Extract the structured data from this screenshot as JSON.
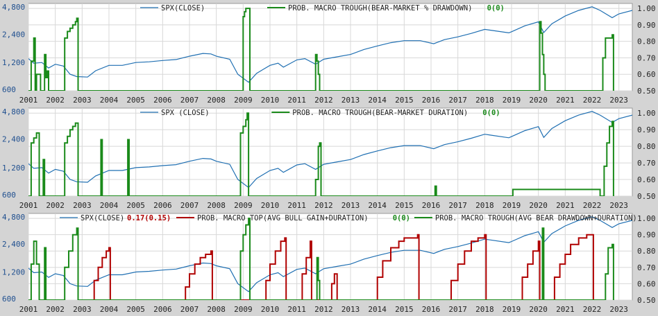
{
  "colors": {
    "spx": "#1f6fb2",
    "trough": "#1a8a1a",
    "top": "#b00000",
    "background": "#ffffff",
    "frame": "#d4d4d4",
    "grid": "#d8d8d8"
  },
  "chart_data": [
    {
      "type": "line",
      "legend": [
        {
          "text": "SPX(CLOSE)",
          "color": "#1f6fb2"
        },
        {
          "text": "PROB. MACRO TROUGH(BEAR-MARKET % DRAWDOWN)",
          "color": "#1a8a1a"
        },
        {
          "text": "0(0)",
          "color": "#1a8a1a",
          "is_value": true
        }
      ],
      "x_ticks": [
        "2001",
        "2002",
        "2003",
        "2004",
        "2005",
        "2006",
        "2007",
        "2008",
        "2009",
        "2010",
        "2011",
        "2012",
        "2013",
        "2014",
        "2015",
        "2016",
        "2017",
        "2018",
        "2019",
        "2020",
        "2021",
        "2022",
        "2023"
      ],
      "xlim": [
        2001.0,
        2023.5
      ],
      "left_axis": {
        "scale": "log",
        "ticks": [
          "4,800",
          "2,400",
          "1,200",
          "600"
        ],
        "tick_values": [
          4800,
          2400,
          1200,
          600
        ],
        "ylim": [
          600,
          5100
        ]
      },
      "right_axis": {
        "ticks": [
          "1.00",
          "0.90",
          "0.80",
          "0.70",
          "0.60",
          "0.50"
        ],
        "tick_values": [
          1.0,
          0.9,
          0.8,
          0.7,
          0.6,
          0.5
        ],
        "ylim": [
          0.5,
          1.03
        ]
      },
      "series": [
        {
          "name": "SPX(CLOSE)",
          "axis": "left",
          "color": "#1f6fb2",
          "x": [
            2001.0,
            2001.2,
            2001.5,
            2001.75,
            2002.0,
            2002.3,
            2002.55,
            2002.8,
            2003.2,
            2003.5,
            2004.0,
            2004.5,
            2005.0,
            2005.5,
            2006.0,
            2006.5,
            2007.0,
            2007.5,
            2007.8,
            2008.0,
            2008.5,
            2008.8,
            2009.2,
            2009.5,
            2010.0,
            2010.3,
            2010.5,
            2011.0,
            2011.3,
            2011.7,
            2012.0,
            2012.5,
            2013.0,
            2013.5,
            2014.0,
            2014.5,
            2015.0,
            2015.6,
            2016.1,
            2016.5,
            2017.0,
            2017.5,
            2018.0,
            2018.2,
            2018.9,
            2019.0,
            2019.5,
            2020.0,
            2020.2,
            2020.5,
            2021.0,
            2021.5,
            2022.0,
            2022.3,
            2022.75,
            2023.0,
            2023.5
          ],
          "values": [
            1320,
            1180,
            1200,
            1050,
            1150,
            1100,
            900,
            850,
            840,
            980,
            1120,
            1120,
            1200,
            1220,
            1260,
            1290,
            1400,
            1500,
            1480,
            1400,
            1300,
            900,
            740,
            920,
            1120,
            1180,
            1070,
            1280,
            1320,
            1150,
            1300,
            1380,
            1460,
            1650,
            1800,
            1950,
            2050,
            2050,
            1900,
            2100,
            2250,
            2450,
            2700,
            2650,
            2480,
            2550,
            2950,
            3250,
            2500,
            3100,
            3750,
            4300,
            4700,
            4300,
            3600,
            3950,
            4300
          ]
        },
        {
          "name": "PROB. MACRO TROUGH(BEAR-MARKET % DRAWDOWN)",
          "axis": "right",
          "color": "#1a8a1a",
          "x": [
            2001.0,
            2001.1,
            2001.2,
            2001.25,
            2001.3,
            2001.45,
            2001.55,
            2001.6,
            2001.65,
            2001.7,
            2001.75,
            2002.25,
            2002.35,
            2002.45,
            2002.55,
            2002.65,
            2002.75,
            2002.8,
            2002.85,
            2008.9,
            2009.0,
            2009.05,
            2009.1,
            2009.2,
            2009.25,
            2011.65,
            2011.7,
            2011.75,
            2011.8,
            2011.85,
            2019.95,
            2020.05,
            2020.1,
            2020.15,
            2020.2,
            2020.25,
            2022.3,
            2022.4,
            2022.5,
            2022.7,
            2022.75,
            2022.8
          ],
          "values": [
            0.5,
            0.68,
            0.82,
            0.5,
            0.6,
            0.5,
            0.5,
            0.72,
            0.58,
            0.62,
            0.5,
            0.5,
            0.82,
            0.86,
            0.88,
            0.9,
            0.92,
            0.94,
            0.5,
            0.5,
            0.95,
            0.98,
            1.0,
            1.0,
            0.5,
            0.5,
            0.72,
            0.68,
            0.6,
            0.5,
            0.5,
            0.92,
            0.85,
            0.72,
            0.6,
            0.5,
            0.5,
            0.7,
            0.82,
            0.82,
            0.84,
            0.5
          ]
        }
      ]
    },
    {
      "type": "line",
      "legend": [
        {
          "text": "SPX (CLOSE)",
          "color": "#1f6fb2"
        },
        {
          "text": "PROB. MACRO TROUGH(BEAR-MARKET DURATION)",
          "color": "#1a8a1a"
        },
        {
          "text": "0(0)",
          "color": "#1a8a1a",
          "is_value": true
        }
      ],
      "x_ticks": [
        "2001",
        "2002",
        "2003",
        "2004",
        "2005",
        "2006",
        "2007",
        "2008",
        "2009",
        "2010",
        "2011",
        "2012",
        "2013",
        "2014",
        "2015",
        "2016",
        "2017",
        "2018",
        "2019",
        "2020",
        "2021",
        "2022",
        "2023"
      ],
      "xlim": [
        2001.0,
        2023.5
      ],
      "left_axis": {
        "scale": "log",
        "ticks": [
          "4,800",
          "2,400",
          "1,200",
          "600"
        ],
        "tick_values": [
          4800,
          2400,
          1200,
          600
        ],
        "ylim": [
          600,
          5100
        ]
      },
      "right_axis": {
        "ticks": [
          "1.00",
          "0.90",
          "0.80",
          "0.70",
          "0.60",
          "0.50"
        ],
        "tick_values": [
          1.0,
          0.9,
          0.8,
          0.7,
          0.6,
          0.5
        ],
        "ylim": [
          0.5,
          1.03
        ]
      },
      "series": [
        {
          "name": "SPX (CLOSE)",
          "axis": "left",
          "color": "#1f6fb2",
          "x": [
            2001.0,
            2001.2,
            2001.5,
            2001.75,
            2002.0,
            2002.3,
            2002.55,
            2002.8,
            2003.2,
            2003.5,
            2004.0,
            2004.5,
            2005.0,
            2005.5,
            2006.0,
            2006.5,
            2007.0,
            2007.5,
            2007.8,
            2008.0,
            2008.5,
            2008.8,
            2009.2,
            2009.5,
            2010.0,
            2010.3,
            2010.5,
            2011.0,
            2011.3,
            2011.7,
            2012.0,
            2012.5,
            2013.0,
            2013.5,
            2014.0,
            2014.5,
            2015.0,
            2015.6,
            2016.1,
            2016.5,
            2017.0,
            2017.5,
            2018.0,
            2018.2,
            2018.9,
            2019.0,
            2019.5,
            2020.0,
            2020.2,
            2020.5,
            2021.0,
            2021.5,
            2022.0,
            2022.3,
            2022.75,
            2023.0,
            2023.5
          ],
          "values": [
            1320,
            1180,
            1200,
            1050,
            1150,
            1100,
            900,
            850,
            840,
            980,
            1120,
            1120,
            1200,
            1220,
            1260,
            1290,
            1400,
            1500,
            1480,
            1400,
            1300,
            900,
            740,
            920,
            1120,
            1180,
            1070,
            1280,
            1320,
            1150,
            1300,
            1380,
            1460,
            1650,
            1800,
            1950,
            2050,
            2050,
            1900,
            2100,
            2250,
            2450,
            2700,
            2650,
            2480,
            2550,
            2950,
            3250,
            2500,
            3100,
            3750,
            4300,
            4700,
            4300,
            3600,
            3950,
            4300
          ]
        },
        {
          "name": "PROB. MACRO TROUGH(BEAR-MARKET DURATION)",
          "axis": "right",
          "color": "#1a8a1a",
          "x": [
            2001.0,
            2001.1,
            2001.2,
            2001.3,
            2001.4,
            2001.45,
            2001.55,
            2001.6,
            2001.7,
            2001.75,
            2002.25,
            2002.35,
            2002.45,
            2002.55,
            2002.65,
            2002.75,
            2002.8,
            2002.85,
            2003.65,
            2003.7,
            2003.75,
            2004.65,
            2004.7,
            2004.75,
            2008.7,
            2008.9,
            2009.0,
            2009.1,
            2009.15,
            2009.2,
            2011.6,
            2011.7,
            2011.8,
            2011.85,
            2011.9,
            2016.1,
            2016.15,
            2016.2,
            2019.0,
            2019.05,
            2022.3,
            2022.45,
            2022.55,
            2022.65,
            2022.75,
            2022.8
          ],
          "values": [
            0.5,
            0.82,
            0.85,
            0.88,
            0.5,
            0.5,
            0.72,
            0.5,
            0.5,
            0.5,
            0.5,
            0.82,
            0.86,
            0.9,
            0.92,
            0.94,
            0.94,
            0.5,
            0.5,
            0.84,
            0.5,
            0.5,
            0.84,
            0.5,
            0.5,
            0.88,
            0.92,
            0.96,
            1.0,
            0.5,
            0.5,
            0.6,
            0.8,
            0.82,
            0.5,
            0.5,
            0.56,
            0.5,
            0.5,
            0.54,
            0.5,
            0.68,
            0.82,
            0.92,
            0.95,
            0.5
          ]
        }
      ]
    },
    {
      "type": "line",
      "legend": [
        {
          "text": "SPX(CLOSE)",
          "color": "#1f6fb2"
        },
        {
          "text": "0.17(0.15)",
          "color": "#b00000",
          "is_value": true
        },
        {
          "text": "PROB. MACRO TOP(AVG BULL GAIN+DURATION)",
          "color": "#b00000"
        },
        {
          "text": "0(0)",
          "color": "#1a8a1a",
          "is_value": true
        },
        {
          "text": "PROB. MACRO TROUGH(AVG BEAR DRAWDOWN+DURATION)",
          "color": "#1a8a1a"
        }
      ],
      "x_ticks": [
        "2001",
        "2002",
        "2003",
        "2004",
        "2005",
        "2006",
        "2007",
        "2008",
        "2009",
        "2010",
        "2011",
        "2012",
        "2013",
        "2014",
        "2015",
        "2016",
        "2017",
        "2018",
        "2019",
        "2020",
        "2021",
        "2022",
        "2023"
      ],
      "xlim": [
        2001.0,
        2023.5
      ],
      "left_axis": {
        "scale": "log",
        "ticks": [
          "4,800",
          "2,400",
          "1,200",
          "600"
        ],
        "tick_values": [
          4800,
          2400,
          1200,
          600
        ],
        "ylim": [
          600,
          5100
        ]
      },
      "right_axis": {
        "ticks": [
          "1.00",
          "0.90",
          "0.80",
          "0.70",
          "0.60",
          "0.50"
        ],
        "tick_values": [
          1.0,
          0.9,
          0.8,
          0.7,
          0.6,
          0.5
        ],
        "ylim": [
          0.5,
          1.03
        ]
      },
      "series": [
        {
          "name": "SPX(CLOSE)",
          "axis": "left",
          "color": "#1f6fb2",
          "x": [
            2001.0,
            2001.2,
            2001.5,
            2001.75,
            2002.0,
            2002.3,
            2002.55,
            2002.8,
            2003.2,
            2003.5,
            2004.0,
            2004.5,
            2005.0,
            2005.5,
            2006.0,
            2006.5,
            2007.0,
            2007.5,
            2007.8,
            2008.0,
            2008.5,
            2008.8,
            2009.2,
            2009.5,
            2010.0,
            2010.3,
            2010.5,
            2011.0,
            2011.3,
            2011.7,
            2012.0,
            2012.5,
            2013.0,
            2013.5,
            2014.0,
            2014.5,
            2015.0,
            2015.6,
            2016.1,
            2016.5,
            2017.0,
            2017.5,
            2018.0,
            2018.2,
            2018.9,
            2019.0,
            2019.5,
            2020.0,
            2020.2,
            2020.5,
            2021.0,
            2021.5,
            2022.0,
            2022.3,
            2022.75,
            2023.0,
            2023.5
          ],
          "values": [
            1320,
            1180,
            1200,
            1050,
            1150,
            1100,
            900,
            850,
            840,
            980,
            1120,
            1120,
            1200,
            1220,
            1260,
            1290,
            1400,
            1500,
            1480,
            1400,
            1300,
            900,
            740,
            920,
            1120,
            1180,
            1070,
            1280,
            1320,
            1150,
            1300,
            1380,
            1460,
            1650,
            1800,
            1950,
            2050,
            2050,
            1900,
            2100,
            2250,
            2450,
            2700,
            2650,
            2480,
            2550,
            2950,
            3250,
            2500,
            3100,
            3750,
            4300,
            4700,
            4300,
            3600,
            3950,
            4300
          ]
        },
        {
          "name": "PROB. MACRO TOP(AVG BULL GAIN+DURATION)",
          "axis": "right",
          "color": "#b00000",
          "x": [
            2003.3,
            2003.45,
            2003.6,
            2003.75,
            2003.9,
            2004.0,
            2004.05,
            2006.75,
            2006.85,
            2007.0,
            2007.2,
            2007.4,
            2007.6,
            2007.8,
            2007.85,
            2009.75,
            2009.85,
            2010.0,
            2010.2,
            2010.4,
            2010.55,
            2010.6,
            2011.1,
            2011.2,
            2011.35,
            2011.5,
            2011.55,
            2012.15,
            2012.3,
            2012.4,
            2012.5,
            2013.75,
            2014.0,
            2014.2,
            2014.5,
            2014.8,
            2015.0,
            2015.5,
            2015.55,
            2016.6,
            2016.75,
            2017.0,
            2017.25,
            2017.5,
            2017.75,
            2018.0,
            2018.05,
            2019.2,
            2019.4,
            2019.6,
            2019.8,
            2020.0,
            2020.05,
            2020.4,
            2020.6,
            2020.8,
            2021.0,
            2021.2,
            2021.5,
            2021.8,
            2022.0,
            2022.05
          ],
          "values": [
            0.5,
            0.62,
            0.7,
            0.76,
            0.8,
            0.82,
            0.5,
            0.5,
            0.58,
            0.66,
            0.72,
            0.76,
            0.78,
            0.8,
            0.5,
            0.5,
            0.62,
            0.72,
            0.8,
            0.86,
            0.88,
            0.5,
            0.5,
            0.66,
            0.76,
            0.86,
            0.5,
            0.5,
            0.6,
            0.66,
            0.5,
            0.5,
            0.64,
            0.74,
            0.82,
            0.86,
            0.88,
            0.9,
            0.5,
            0.5,
            0.62,
            0.72,
            0.8,
            0.86,
            0.88,
            0.9,
            0.5,
            0.5,
            0.64,
            0.72,
            0.8,
            0.86,
            0.5,
            0.5,
            0.64,
            0.72,
            0.78,
            0.84,
            0.88,
            0.9,
            0.9,
            0.5
          ]
        },
        {
          "name": "PROB. MACRO TROUGH(AVG BEAR DRAWDOWN+DURATION)",
          "axis": "right",
          "color": "#1a8a1a",
          "x": [
            2001.0,
            2001.1,
            2001.2,
            2001.3,
            2001.4,
            2001.55,
            2001.6,
            2001.65,
            2002.25,
            2002.35,
            2002.5,
            2002.65,
            2002.8,
            2002.85,
            2008.75,
            2008.9,
            2009.0,
            2009.1,
            2009.2,
            2009.25,
            2011.65,
            2011.75,
            2011.8,
            2011.85,
            2020.05,
            2020.15,
            2020.2,
            2022.35,
            2022.5,
            2022.6,
            2022.75,
            2022.8
          ],
          "values": [
            0.5,
            0.72,
            0.86,
            0.72,
            0.5,
            0.5,
            0.82,
            0.5,
            0.5,
            0.7,
            0.8,
            0.9,
            0.94,
            0.5,
            0.5,
            0.8,
            0.9,
            0.96,
            1.0,
            0.5,
            0.5,
            0.76,
            0.62,
            0.5,
            0.5,
            0.94,
            0.5,
            0.5,
            0.66,
            0.82,
            0.84,
            0.5
          ]
        }
      ]
    }
  ]
}
